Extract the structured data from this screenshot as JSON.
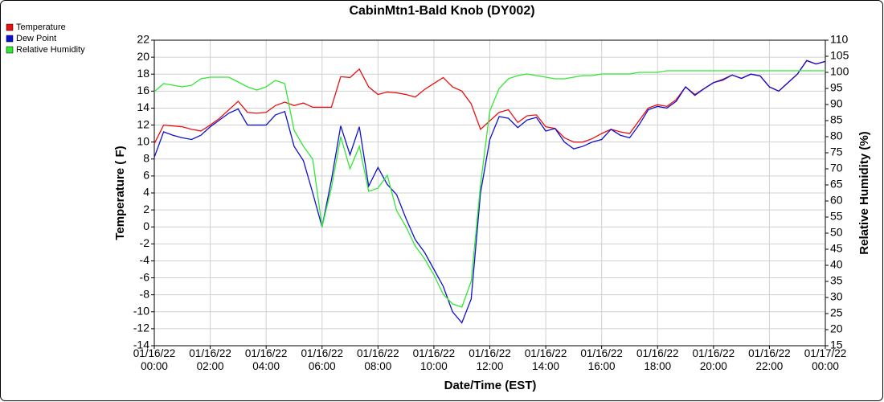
{
  "chart_data": {
    "type": "line",
    "title": "CabinMtn1-Bald Knob (DY002)",
    "xlabel": "Date/Time (EST)",
    "ylabel": "Temperature ( F)",
    "y2label": "Relative Humidity (%)",
    "legend": "top-left",
    "grid": true,
    "xlim": [
      "01/16/22 00:00",
      "01/17/22 00:00"
    ],
    "xticks": [
      "01/16/22 00:00",
      "01/16/22 02:00",
      "01/16/22 04:00",
      "01/16/22 06:00",
      "01/16/22 08:00",
      "01/16/22 10:00",
      "01/16/22 12:00",
      "01/16/22 14:00",
      "01/16/22 16:00",
      "01/16/22 18:00",
      "01/16/22 20:00",
      "01/16/22 22:00",
      "01/17/22 00:00"
    ],
    "ylim": [
      -14,
      22
    ],
    "yticks": [
      -14,
      -12,
      -10,
      -8,
      -6,
      -4,
      -2,
      0,
      2,
      4,
      6,
      8,
      10,
      12,
      14,
      16,
      18,
      20,
      22
    ],
    "y2lim": [
      15,
      110
    ],
    "y2ticks": [
      15,
      20,
      25,
      30,
      35,
      40,
      45,
      50,
      55,
      60,
      65,
      70,
      75,
      80,
      85,
      90,
      95,
      100,
      105,
      110
    ],
    "x": [
      "01/16/22 00:00",
      "01/16/22 00:20",
      "01/16/22 00:40",
      "01/16/22 01:00",
      "01/16/22 01:20",
      "01/16/22 01:40",
      "01/16/22 02:00",
      "01/16/22 02:20",
      "01/16/22 02:40",
      "01/16/22 03:00",
      "01/16/22 03:20",
      "01/16/22 03:40",
      "01/16/22 04:00",
      "01/16/22 04:20",
      "01/16/22 04:40",
      "01/16/22 05:00",
      "01/16/22 05:20",
      "01/16/22 05:40",
      "01/16/22 06:00",
      "01/16/22 06:20",
      "01/16/22 06:40",
      "01/16/22 07:00",
      "01/16/22 07:20",
      "01/16/22 07:40",
      "01/16/22 08:00",
      "01/16/22 08:20",
      "01/16/22 08:40",
      "01/16/22 09:00",
      "01/16/22 09:20",
      "01/16/22 09:40",
      "01/16/22 10:00",
      "01/16/22 10:20",
      "01/16/22 10:40",
      "01/16/22 11:00",
      "01/16/22 11:20",
      "01/16/22 11:40",
      "01/16/22 12:00",
      "01/16/22 12:20",
      "01/16/22 12:40",
      "01/16/22 13:00",
      "01/16/22 13:20",
      "01/16/22 13:40",
      "01/16/22 14:00",
      "01/16/22 14:20",
      "01/16/22 14:40",
      "01/16/22 15:00",
      "01/16/22 15:20",
      "01/16/22 15:40",
      "01/16/22 16:00",
      "01/16/22 16:20",
      "01/16/22 16:40",
      "01/16/22 17:00",
      "01/16/22 17:20",
      "01/16/22 17:40",
      "01/16/22 18:00",
      "01/16/22 18:20",
      "01/16/22 18:40",
      "01/16/22 19:00",
      "01/16/22 19:20",
      "01/16/22 19:40",
      "01/16/22 20:00",
      "01/16/22 20:20",
      "01/16/22 20:40",
      "01/16/22 21:00",
      "01/16/22 21:20",
      "01/16/22 21:40",
      "01/16/22 22:00",
      "01/16/22 22:20",
      "01/16/22 22:40",
      "01/16/22 23:00",
      "01/16/22 23:20",
      "01/16/22 23:40",
      "01/17/22 00:00"
    ],
    "series": [
      {
        "name": "Temperature",
        "color": "#e81010",
        "values": [
          9.8,
          12.0,
          11.9,
          11.8,
          11.5,
          11.3,
          12.0,
          12.8,
          13.8,
          14.8,
          13.5,
          13.4,
          13.5,
          14.3,
          14.7,
          14.3,
          14.6,
          14.1,
          14.1,
          14.1,
          17.7,
          17.6,
          18.6,
          16.5,
          15.6,
          15.9,
          15.8,
          15.6,
          15.3,
          16.2,
          16.9,
          17.6,
          16.5,
          16.0,
          14.5,
          11.5,
          12.5,
          13.5,
          13.8,
          12.3,
          13.1,
          13.2,
          11.8,
          11.6,
          10.5,
          10.0,
          10.0,
          10.4,
          11.0,
          11.5,
          11.2,
          11.0,
          12.5,
          14.0,
          14.4,
          14.2,
          15.0,
          16.5,
          15.6,
          16.3,
          17.0,
          17.4,
          17.9,
          17.5,
          18.0,
          17.8,
          16.5,
          16.0,
          17.0,
          18.0,
          19.6,
          19.2,
          19.5
        ]
      },
      {
        "name": "Dew Point",
        "color": "#1010d0",
        "values": [
          8.2,
          11.2,
          10.8,
          10.5,
          10.3,
          10.8,
          11.8,
          12.6,
          13.4,
          13.9,
          12.0,
          12.0,
          12.0,
          13.2,
          13.6,
          9.5,
          7.8,
          4.0,
          0.0,
          5.5,
          11.9,
          8.5,
          11.8,
          4.8,
          7.0,
          5.0,
          3.8,
          1.0,
          -1.5,
          -3.0,
          -5.0,
          -7.0,
          -10.0,
          -11.3,
          -8.5,
          4.0,
          10.3,
          13.0,
          12.8,
          11.7,
          12.6,
          12.9,
          11.3,
          11.6,
          10.0,
          9.2,
          9.5,
          10.0,
          10.3,
          11.5,
          10.8,
          10.5,
          12.0,
          13.8,
          14.2,
          14.0,
          14.8,
          16.5,
          15.5,
          16.3,
          17.0,
          17.3,
          17.9,
          17.5,
          18.0,
          17.8,
          16.5,
          16.0,
          17.0,
          18.0,
          19.6,
          19.2,
          19.5
        ]
      },
      {
        "name": "Relative Humidity",
        "color": "#33e833",
        "axis": "y2",
        "values": [
          94,
          96.5,
          96,
          95.5,
          96,
          98,
          98.5,
          98.5,
          98.5,
          97,
          95.5,
          94.5,
          95.5,
          97.5,
          96.5,
          82,
          77,
          73,
          52,
          64,
          80,
          70,
          77,
          63,
          64,
          68,
          57,
          52,
          46,
          42,
          37,
          31,
          28,
          27,
          35,
          65,
          88,
          95,
          98,
          99,
          99.5,
          99,
          98.5,
          98,
          98,
          98.5,
          99,
          99,
          99.5,
          99.5,
          99.5,
          99.5,
          100,
          100,
          100,
          100.5,
          100.5,
          100.5,
          100.5,
          100.5,
          100.5,
          100.5,
          100.5,
          100.5,
          100.5,
          100.5,
          100.5,
          100.5,
          100.5,
          100.5,
          100.5,
          100.5,
          100.5
        ]
      }
    ]
  }
}
